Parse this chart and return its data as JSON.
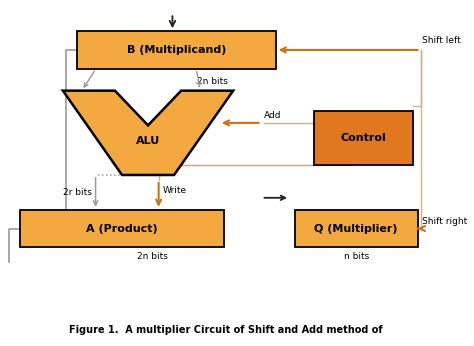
{
  "title": "Figure 1.  A multiplier Circuit of Shift and Add method of",
  "bg_color": "#ffffff",
  "box_fill": "#F4A840",
  "box_fill_light": "#F9C87A",
  "control_fill": "#E07820",
  "orange_arrow": "#D07010",
  "gray_arrow": "#999999",
  "black_arrow": "#222222",
  "tan_line": "#D0B090",
  "labels": {
    "B": "B (Multiplicand)",
    "A": "A (Product)",
    "Q": "Q (Multiplier)",
    "Control": "Control",
    "ALU": "ALU",
    "shift_left": "Shift left",
    "shift_right": "Shift right",
    "add": "Add",
    "write": "Write",
    "2n_bits_B": "2n bits",
    "2n_bits_A": "2n bits",
    "n_bits": "n bits",
    "2r_bits": "2r bits"
  },
  "font_size_box": 8,
  "font_size_label": 6.5,
  "font_size_title": 7
}
